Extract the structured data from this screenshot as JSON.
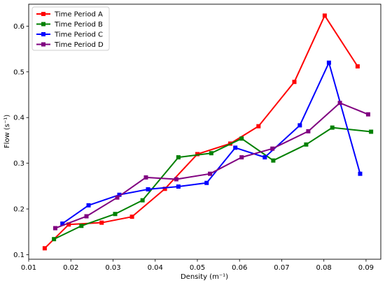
{
  "chart_data": {
    "type": "line",
    "title": "",
    "xlabel": "Density (m⁻¹)",
    "ylabel": "Flow (s⁻¹)",
    "xlim": [
      0.01,
      0.0935
    ],
    "ylim": [
      0.09,
      0.648
    ],
    "xticks": [
      0.01,
      0.02,
      0.03,
      0.04,
      0.05,
      0.06,
      0.07,
      0.08,
      0.09
    ],
    "xtick_labels": [
      "0.01",
      "0.02",
      "0.03",
      "0.04",
      "0.05",
      "0.06",
      "0.07",
      "0.08",
      "0.09"
    ],
    "yticks": [
      0.1,
      0.2,
      0.3,
      0.4,
      0.5,
      0.6
    ],
    "ytick_labels": [
      "0.1",
      "0.2",
      "0.3",
      "0.4",
      "0.5",
      "0.6"
    ],
    "grid": false,
    "legend_position": "top-left",
    "marker": "square",
    "series": [
      {
        "name": "Time Period A",
        "color": "#ff0000",
        "x": [
          0.0138,
          0.0195,
          0.0273,
          0.0345,
          0.0423,
          0.05,
          0.0578,
          0.0645,
          0.073,
          0.0802,
          0.088
        ],
        "y": [
          0.114,
          0.166,
          0.17,
          0.183,
          0.244,
          0.32,
          0.343,
          0.381,
          0.478,
          0.623,
          0.512
        ]
      },
      {
        "name": "Time Period B",
        "color": "#008000",
        "x": [
          0.016,
          0.0225,
          0.0305,
          0.037,
          0.0455,
          0.0533,
          0.0605,
          0.068,
          0.0758,
          0.082,
          0.0912
        ],
        "y": [
          0.134,
          0.163,
          0.189,
          0.219,
          0.313,
          0.322,
          0.354,
          0.306,
          0.341,
          0.378,
          0.369
        ]
      },
      {
        "name": "Time Period C",
        "color": "#0000ff",
        "x": [
          0.018,
          0.0242,
          0.0315,
          0.0383,
          0.0455,
          0.0522,
          0.059,
          0.066,
          0.0743,
          0.0812,
          0.0886
        ],
        "y": [
          0.168,
          0.208,
          0.231,
          0.243,
          0.249,
          0.257,
          0.334,
          0.313,
          0.383,
          0.52,
          0.277
        ]
      },
      {
        "name": "Time Period D",
        "color": "#800080",
        "x": [
          0.0163,
          0.0237,
          0.031,
          0.0378,
          0.045,
          0.053,
          0.0605,
          0.0678,
          0.0763,
          0.0838,
          0.0905
        ],
        "y": [
          0.158,
          0.184,
          0.225,
          0.269,
          0.265,
          0.277,
          0.313,
          0.332,
          0.37,
          0.432,
          0.407
        ]
      }
    ]
  }
}
